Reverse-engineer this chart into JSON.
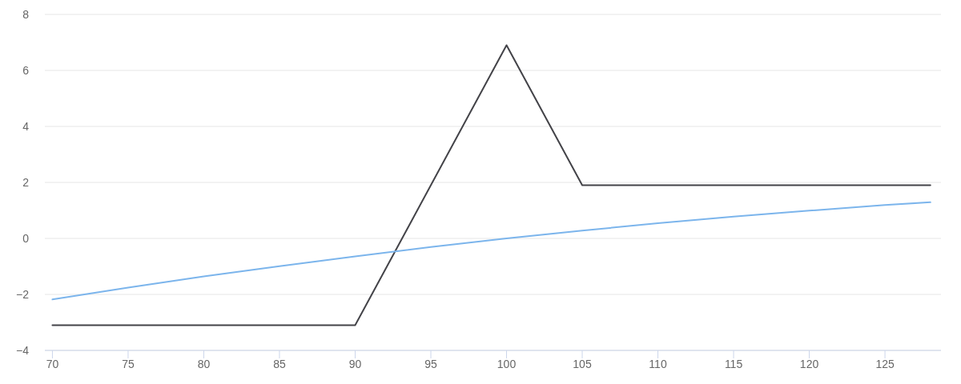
{
  "chart_data": {
    "type": "line",
    "series": [
      {
        "color": "#434348",
        "x": [
          70,
          90,
          100,
          105,
          128
        ],
        "values": [
          -3.1,
          -3.1,
          6.9,
          1.9,
          1.9
        ]
      },
      {
        "color": "#7cb5ec",
        "x": [
          70,
          75,
          80,
          85,
          90,
          95,
          100,
          105,
          110,
          115,
          120,
          125,
          128
        ],
        "values": [
          -2.18,
          -1.76,
          -1.36,
          -0.99,
          -0.64,
          -0.31,
          0,
          0.28,
          0.54,
          0.78,
          0.99,
          1.19,
          1.29
        ]
      }
    ],
    "xlim": [
      69.5,
      128.7
    ],
    "ylim": [
      -4,
      8
    ],
    "xticks": [
      70,
      75,
      80,
      85,
      90,
      95,
      100,
      105,
      110,
      115,
      120,
      125
    ],
    "yticks": [
      -4,
      -2,
      0,
      2,
      4,
      6,
      8
    ],
    "grid": "y"
  }
}
